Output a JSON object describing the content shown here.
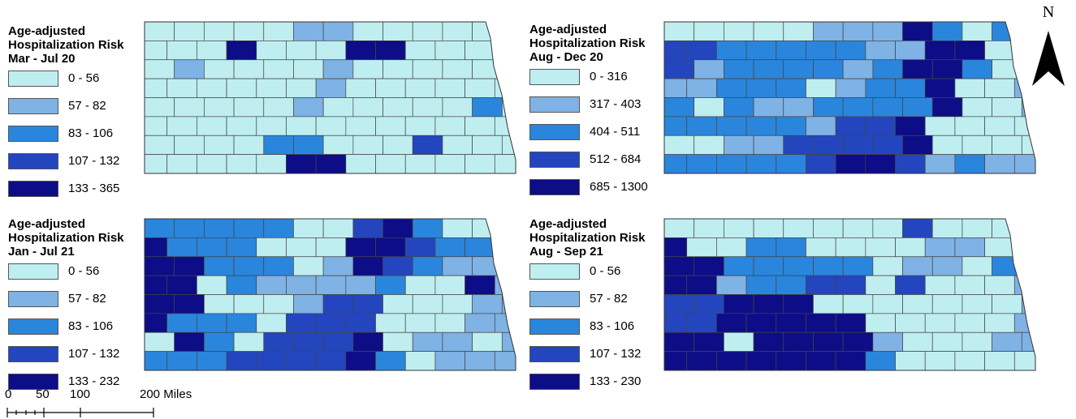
{
  "maps": [
    {
      "legend_title": [
        "Age-adjusted",
        "Hospitalization Risk",
        "Mar - Jul 20"
      ],
      "classes": [
        "0 - 56",
        "57 - 82",
        "83 - 106",
        "107 - 132",
        "133 - 365"
      ],
      "counties": [
        "0000011000000",
        "0004000440000",
        "0100001000000",
        "0000001000000",
        "0000010000020",
        "0000000000000",
        "0000220003000",
        "0000044000000"
      ]
    },
    {
      "legend_title": [
        "Age-adjusted",
        "Hospitalization Risk",
        "Aug - Dec 20"
      ],
      "classes": [
        "0 - 316",
        "317 - 403",
        "404 - 511",
        "512 - 684",
        "685 - 1300"
      ],
      "counties": [
        "0000011142021",
        "3322222114402",
        "3122221244201",
        "1122201224001",
        "2021122224001",
        "2222213340000",
        "0011333340000",
        "2222234431211"
      ]
    },
    {
      "legend_title": [
        "Age-adjusted",
        "Hospitalization Risk",
        "Jan - Jul 21"
      ],
      "classes": [
        "0 - 56",
        "57 - 82",
        "83 - 106",
        "107 - 132",
        "133 - 232"
      ],
      "counties": [
        "2222200342000",
        "4222000443220",
        "4422201432111",
        "4402111120041",
        "4400013300011",
        "4222033300011",
        "0420333401101",
        "2223333420111"
      ]
    },
    {
      "legend_title": [
        "Age-adjusted",
        "Hospitalization Risk",
        "Aug - Sep 21"
      ],
      "classes": [
        "0 - 56",
        "57 - 82",
        "83 - 106",
        "107 - 132",
        "133 - 230"
      ],
      "counties": [
        "0000000030003",
        "4002200001101",
        "4422222011021",
        "4412233030001",
        "3344400000001",
        "3344444000001",
        "4404444100011",
        "4444444200000"
      ]
    }
  ],
  "palette": [
    "#bfeef0",
    "#7fb2e5",
    "#2a86dc",
    "#2346bf",
    "#0d0d87"
  ],
  "north_label": "N",
  "scale": {
    "ticks": [
      "0",
      "50",
      "100",
      "200 Miles"
    ]
  }
}
